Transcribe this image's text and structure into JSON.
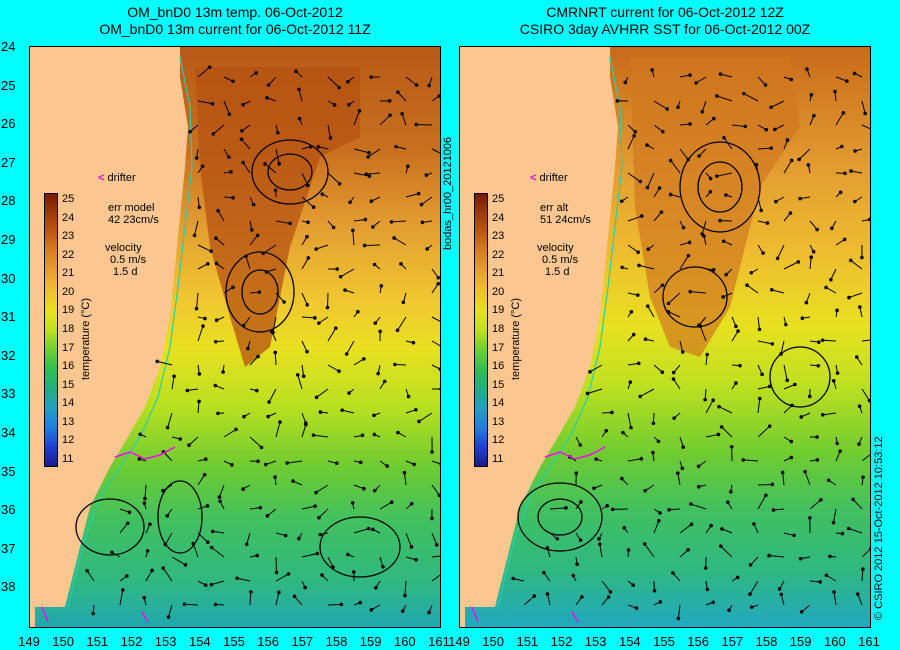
{
  "titles": {
    "left_line1": "OM_bnD0 13m temp. 06-Oct-2012",
    "left_line2": "OM_bnD0 13m current for 06-Oct-2012 11Z",
    "right_line1": "CMRNRT current for 06-Oct-2012 12Z",
    "right_line2": "CSIRO 3day AVHRR SST for 06-Oct-2012 00Z"
  },
  "axes": {
    "lat_ticks": [
      "24",
      "25",
      "26",
      "27",
      "28",
      "29",
      "30",
      "31",
      "32",
      "33",
      "34",
      "35",
      "36",
      "37",
      "38"
    ],
    "lon_ticks_left": [
      "149",
      "150",
      "151",
      "152",
      "153",
      "154",
      "155",
      "156",
      "157",
      "158",
      "159",
      "160",
      "161"
    ],
    "lon_ticks_right": [
      "149",
      "150",
      "151",
      "152",
      "153",
      "154",
      "155",
      "156",
      "157",
      "158",
      "159",
      "160",
      "161"
    ]
  },
  "colorbar": {
    "label": "temperature (°C)",
    "ticks": [
      "25",
      "24",
      "23",
      "22",
      "21",
      "20",
      "19",
      "18",
      "17",
      "16",
      "15",
      "14",
      "13",
      "12",
      "11"
    ],
    "colors": [
      "#7a1a00",
      "#9e3a0a",
      "#c05a10",
      "#d98020",
      "#e8a030",
      "#f0c030",
      "#e8e020",
      "#c0e020",
      "#70d030",
      "#30c050",
      "#20b080",
      "#20a0c0",
      "#2080e0",
      "#2040d0",
      "#1a1a90"
    ]
  },
  "left_panel": {
    "drifter_mark": "<",
    "drifter_label": "drifter",
    "err_title": "err model",
    "err_value": "42 23cm/s",
    "velocity_title": "velocity",
    "velocity_speed": "0.5 m/s",
    "velocity_time": "1.5 d"
  },
  "right_panel": {
    "drifter_mark": "<",
    "drifter_label": "drifter",
    "err_title": "err alt",
    "err_value": "51 24cm/s",
    "velocity_title": "velocity",
    "velocity_speed": "0.5 m/s",
    "velocity_time": "1.5 d"
  },
  "side_labels": {
    "middle": "bodas_hr00_20121006",
    "right": "© CSIRO 2012   15-Oct-2012 10:53:12"
  }
}
